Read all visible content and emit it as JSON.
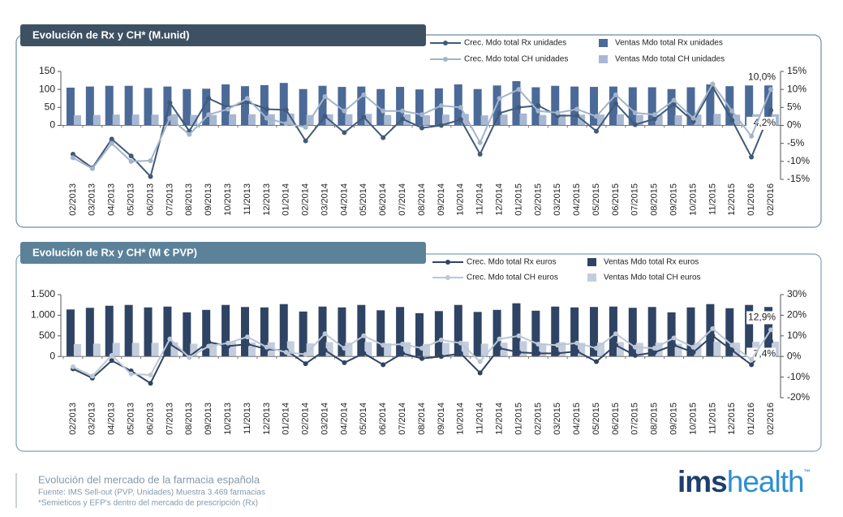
{
  "chart_data": [
    {
      "type": "combo",
      "title": "Evolución de Rx y CH* (M.unid)",
      "categories": [
        "02/2013",
        "03/2013",
        "04/2013",
        "05/2013",
        "06/2013",
        "07/2013",
        "08/2013",
        "09/2013",
        "10/2013",
        "11/2013",
        "12/2013",
        "01/2014",
        "02/2014",
        "03/2014",
        "04/2014",
        "05/2014",
        "06/2014",
        "07/2014",
        "08/2014",
        "09/2014",
        "10/2014",
        "11/2014",
        "12/2014",
        "01/2015",
        "02/2015",
        "03/2015",
        "04/2015",
        "05/2015",
        "06/2015",
        "07/2015",
        "08/2015",
        "09/2015",
        "10/2015",
        "11/2015",
        "12/2015",
        "01/2016",
        "02/2016"
      ],
      "ylim": [
        -150,
        150
      ],
      "yticks": [
        0,
        50,
        100,
        150
      ],
      "y2lim": [
        -15,
        15
      ],
      "y2ticks": [
        {
          "value": -15,
          "label": "-15%"
        },
        {
          "value": -10,
          "label": "-10%"
        },
        {
          "value": -5,
          "label": "-5%"
        },
        {
          "value": 0,
          "label": "0%"
        },
        {
          "value": 5,
          "label": "5%"
        },
        {
          "value": 10,
          "label": "10%"
        },
        {
          "value": 15,
          "label": "15%"
        }
      ],
      "series": [
        {
          "name": "Crec. Mdo total Rx unidades",
          "type": "line",
          "axis": "y2",
          "color": "#3f5a7a",
          "values": [
            -8,
            -11.8,
            -3.8,
            -8.5,
            -14.2,
            6.3,
            -1.6,
            7.5,
            5,
            6.5,
            4.5,
            4.3,
            -4.3,
            2.5,
            -2,
            2.3,
            -3.4,
            1.8,
            -0.7,
            0,
            1.6,
            -8,
            3.4,
            5,
            5.5,
            2.7,
            2.7,
            -1.6,
            6.1,
            0.2,
            1.8,
            5.9,
            1.1,
            10.7,
            1.4,
            -8.8,
            4.2
          ],
          "value_labels": [
            null,
            null,
            null,
            null,
            null,
            null,
            null,
            null,
            null,
            null,
            null,
            null,
            null,
            null,
            null,
            null,
            null,
            null,
            null,
            null,
            null,
            null,
            null,
            null,
            null,
            null,
            null,
            null,
            null,
            null,
            null,
            null,
            null,
            null,
            null,
            null,
            "4,2%"
          ]
        },
        {
          "name": "Ventas Mdo total Rx unidades",
          "type": "bar",
          "color": "#4b6a98",
          "values": [
            105,
            108,
            110,
            110,
            104,
            108,
            101,
            102,
            114,
            109,
            112,
            118,
            101,
            110,
            107,
            108,
            101,
            107,
            100,
            103,
            114,
            101,
            111,
            123,
            106,
            110,
            108,
            107,
            108,
            106,
            106,
            101,
            106,
            114,
            109,
            111,
            111
          ]
        },
        {
          "name": "Crec. Mdo total CH unidades",
          "type": "line",
          "axis": "y2",
          "color": "#a3b4ca",
          "values": [
            -9,
            -12,
            -5,
            -10,
            -9.8,
            2,
            -2.5,
            3,
            4.5,
            7.5,
            2,
            0.5,
            -0.5,
            8,
            4,
            8.5,
            4,
            4,
            3,
            5.5,
            5,
            -4.8,
            7.5,
            10,
            4,
            3.5,
            4.5,
            2.5,
            8.5,
            3.5,
            3,
            7,
            2,
            11.5,
            4,
            -3,
            10
          ],
          "value_labels": [
            null,
            null,
            null,
            null,
            null,
            null,
            null,
            null,
            null,
            null,
            null,
            null,
            null,
            null,
            null,
            null,
            null,
            null,
            null,
            null,
            null,
            null,
            null,
            null,
            null,
            null,
            null,
            null,
            null,
            null,
            null,
            null,
            null,
            null,
            null,
            null,
            "10,0%"
          ]
        },
        {
          "name": "Ventas Mdo total CH unidades",
          "type": "bar",
          "color": "#a8b8d2",
          "values": [
            28,
            29,
            30,
            30,
            30,
            31,
            29,
            29,
            31,
            31,
            31,
            33,
            29,
            31,
            31,
            32,
            29,
            31,
            28,
            30,
            32,
            28,
            30,
            33,
            29,
            31,
            30,
            30,
            31,
            29,
            30,
            28,
            30,
            32,
            30,
            31,
            31
          ]
        }
      ]
    },
    {
      "type": "combo",
      "title": "Evolución de Rx y CH* (M € PVP)",
      "categories": [
        "02/2013",
        "03/2013",
        "04/2013",
        "05/2013",
        "06/2013",
        "07/2013",
        "08/2013",
        "09/2013",
        "10/2013",
        "11/2013",
        "12/2013",
        "01/2014",
        "02/2014",
        "03/2014",
        "04/2014",
        "05/2014",
        "06/2014",
        "07/2014",
        "08/2014",
        "09/2014",
        "10/2014",
        "11/2014",
        "12/2014",
        "01/2015",
        "02/2015",
        "03/2015",
        "04/2015",
        "05/2015",
        "06/2015",
        "07/2015",
        "08/2015",
        "09/2015",
        "10/2015",
        "11/2015",
        "12/2015",
        "01/2016",
        "02/2016"
      ],
      "ylim": [
        -1000,
        1500
      ],
      "yticks": [
        0,
        500,
        {
          "value": 1000,
          "label": "1.000"
        },
        {
          "value": 1500,
          "label": "1.500"
        }
      ],
      "y2lim": [
        -20,
        30
      ],
      "y2ticks": [
        {
          "value": -20,
          "label": "-20%"
        },
        {
          "value": -10,
          "label": "-10%"
        },
        {
          "value": 0,
          "label": "0%"
        },
        {
          "value": 10,
          "label": "10%"
        },
        {
          "value": 20,
          "label": "20%"
        },
        {
          "value": 30,
          "label": "30%"
        }
      ],
      "series": [
        {
          "name": "Crec. Mdo total Rx euros",
          "type": "line",
          "axis": "y2",
          "color": "#2f4464",
          "values": [
            -6,
            -10.5,
            -2,
            -7,
            -13,
            6,
            0,
            7,
            5,
            6,
            3.5,
            3,
            -3.5,
            3,
            -3,
            1.5,
            -4,
            1.5,
            -1,
            0,
            1.5,
            -8,
            4,
            2,
            1.5,
            1.5,
            2.5,
            -2.5,
            5.5,
            0.5,
            2,
            5.5,
            2,
            10,
            3,
            -4,
            7.4
          ],
          "value_labels": [
            null,
            null,
            null,
            null,
            null,
            null,
            null,
            null,
            null,
            null,
            null,
            null,
            null,
            null,
            null,
            null,
            null,
            null,
            null,
            null,
            null,
            null,
            null,
            null,
            null,
            null,
            null,
            null,
            null,
            null,
            null,
            null,
            null,
            null,
            null,
            null,
            "7,4%"
          ]
        },
        {
          "name": "Ventas Mdo total Rx euros",
          "type": "bar",
          "color": "#2f4464",
          "values": [
            1140,
            1180,
            1230,
            1250,
            1190,
            1210,
            1070,
            1130,
            1250,
            1200,
            1190,
            1270,
            1090,
            1210,
            1190,
            1250,
            1120,
            1200,
            1050,
            1100,
            1250,
            1080,
            1130,
            1290,
            1110,
            1210,
            1190,
            1200,
            1210,
            1180,
            1200,
            1070,
            1190,
            1270,
            1170,
            1250,
            1200
          ]
        },
        {
          "name": "Crec. Mdo total CH euros",
          "type": "line",
          "axis": "y2",
          "color": "#bcc7d6",
          "values": [
            -5,
            -9.5,
            0.5,
            -8.5,
            -9,
            8.5,
            -0.5,
            5,
            6.5,
            9.5,
            4.5,
            2,
            1,
            11,
            4,
            10,
            5.5,
            6,
            4,
            8,
            6.5,
            -2.5,
            8.5,
            10,
            6,
            5.5,
            6.5,
            4,
            11,
            4.5,
            4,
            9,
            4.5,
            13.5,
            5.5,
            -1.5,
            12.9
          ],
          "value_labels": [
            null,
            null,
            null,
            null,
            null,
            null,
            null,
            null,
            null,
            null,
            null,
            null,
            null,
            null,
            null,
            null,
            null,
            null,
            null,
            null,
            null,
            null,
            null,
            null,
            null,
            null,
            null,
            null,
            null,
            null,
            null,
            null,
            null,
            null,
            null,
            null,
            "12,9%"
          ]
        },
        {
          "name": "Ventas Mdo total CH euros",
          "type": "bar",
          "color": "#c3cddd",
          "values": [
            300,
            310,
            330,
            330,
            330,
            345,
            310,
            320,
            350,
            340,
            345,
            370,
            320,
            345,
            335,
            350,
            320,
            345,
            305,
            330,
            360,
            310,
            335,
            370,
            320,
            345,
            330,
            335,
            350,
            330,
            335,
            310,
            330,
            360,
            335,
            355,
            360
          ]
        }
      ]
    }
  ],
  "footer": {
    "title": "Evolución del mercado de la farmacia española",
    "source": "Fuente: IMS Sell-out  (PVP, Unidades) Muestra 3.469  farmacias",
    "note": "*Semieticos y EFP's dentro del mercado de prescripción (Rx)"
  },
  "logo": {
    "ims": "ims",
    "health": "health",
    "tm": "™"
  }
}
